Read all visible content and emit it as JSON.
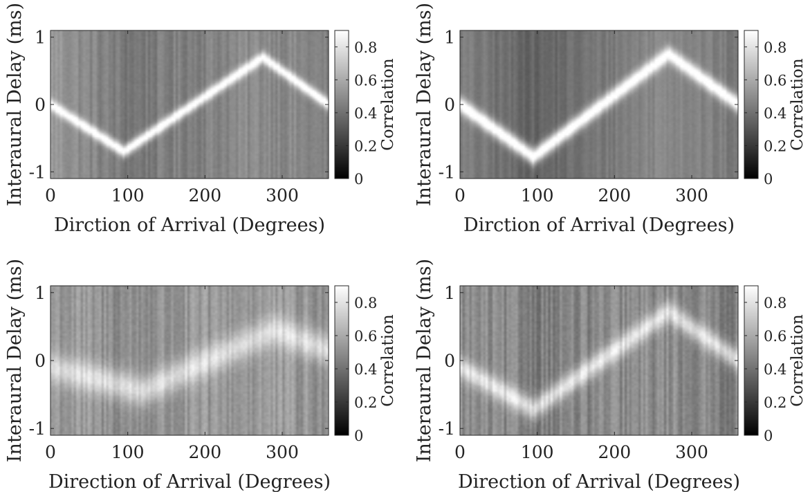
{
  "figure": {
    "background": "#ffffff",
    "colormap": "gray"
  },
  "chart_data": [
    {
      "type": "heatmap",
      "title": "",
      "xlabel": "Dirction of Arrival (Degrees)",
      "ylabel": "Interaural Delay (ms)",
      "xlim": [
        0,
        360
      ],
      "ylim": [
        -1.1,
        1.1
      ],
      "xticks": [
        0,
        100,
        200,
        300
      ],
      "yticks": [
        -1,
        0,
        1
      ],
      "colorbar": {
        "label": "Correlation",
        "range": [
          0,
          0.9
        ],
        "ticks": [
          0,
          0.2,
          0.4,
          0.6,
          0.8
        ]
      },
      "ridge": {
        "x": [
          0,
          95,
          275,
          360
        ],
        "y": [
          0,
          -0.7,
          0.7,
          0.0
        ]
      },
      "ridge_peak_value": 0.95,
      "background_level": {
        "x": [
          0,
          100,
          280,
          360
        ],
        "value": [
          0.55,
          0.42,
          0.5,
          0.45
        ]
      },
      "ridge_width_ms": 0.09,
      "noise": 0.05
    },
    {
      "type": "heatmap",
      "title": "",
      "xlabel": "Dirction of Arrival (Degrees)",
      "ylabel": "Interaural Delay (ms)",
      "xlim": [
        0,
        360
      ],
      "ylim": [
        -1.1,
        1.1
      ],
      "xticks": [
        0,
        100,
        200,
        300
      ],
      "yticks": [
        -1,
        0,
        1
      ],
      "colorbar": {
        "label": "Correlation",
        "range": [
          0,
          0.9
        ],
        "ticks": [
          0,
          0.2,
          0.4,
          0.6,
          0.8
        ]
      },
      "ridge": {
        "x": [
          0,
          95,
          270,
          360
        ],
        "y": [
          0,
          -0.78,
          0.75,
          0.0
        ]
      },
      "ridge_peak_value": 0.96,
      "background_level": {
        "x": [
          0,
          100,
          270,
          360
        ],
        "value": [
          0.45,
          0.35,
          0.5,
          0.42
        ]
      },
      "ridge_width_ms": 0.12,
      "noise": 0.04
    },
    {
      "type": "heatmap",
      "title": "",
      "xlabel": "Direction of Arrival (Degrees)",
      "ylabel": "Interaural Delay (ms)",
      "xlim": [
        0,
        360
      ],
      "ylim": [
        -1.1,
        1.1
      ],
      "xticks": [
        0,
        100,
        200,
        300
      ],
      "yticks": [
        -1,
        0,
        1
      ],
      "colorbar": {
        "label": "Correlation",
        "range": [
          0,
          0.9
        ],
        "ticks": [
          0,
          0.2,
          0.4,
          0.6,
          0.8
        ]
      },
      "ridge": {
        "x": [
          0,
          120,
          290,
          360
        ],
        "y": [
          -0.1,
          -0.45,
          0.45,
          0.15
        ]
      },
      "ridge_peak_value": 0.78,
      "background_level": {
        "x": [
          0,
          100,
          280,
          360
        ],
        "value": [
          0.55,
          0.5,
          0.55,
          0.5
        ]
      },
      "ridge_width_ms": 0.22,
      "noise": 0.08
    },
    {
      "type": "heatmap",
      "title": "",
      "xlabel": "Direction of Arrival (Degrees)",
      "ylabel": "Interaural Delay (ms)",
      "xlim": [
        0,
        360
      ],
      "ylim": [
        -1.1,
        1.1
      ],
      "xticks": [
        0,
        100,
        200,
        300
      ],
      "yticks": [
        -1,
        0,
        1
      ],
      "colorbar": {
        "label": "Correlation",
        "range": [
          0,
          0.9
        ],
        "ticks": [
          0,
          0.2,
          0.4,
          0.6,
          0.8
        ]
      },
      "ridge": {
        "x": [
          0,
          95,
          270,
          360
        ],
        "y": [
          -0.1,
          -0.72,
          0.72,
          0.0
        ]
      },
      "ridge_peak_value": 0.8,
      "background_level": {
        "x": [
          0,
          100,
          270,
          360
        ],
        "value": [
          0.5,
          0.45,
          0.5,
          0.45
        ]
      },
      "ridge_width_ms": 0.16,
      "noise": 0.08
    }
  ]
}
